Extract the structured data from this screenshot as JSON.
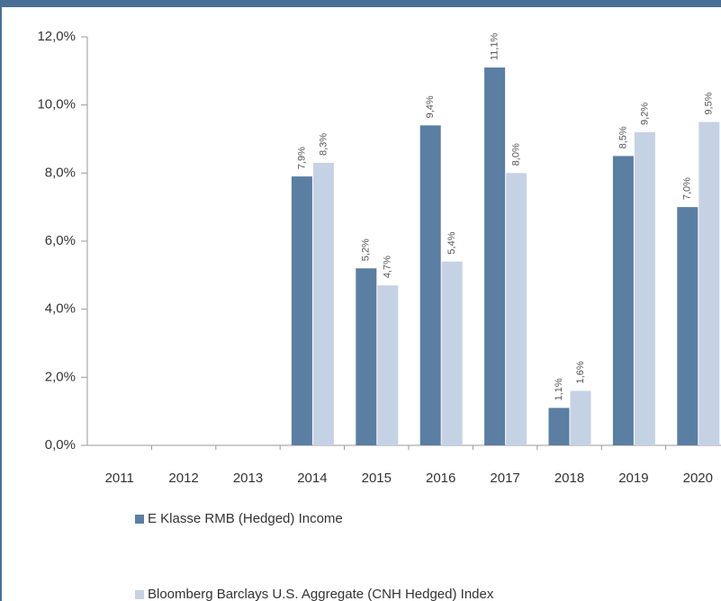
{
  "chart_data": {
    "type": "bar",
    "categories": [
      "2011",
      "2012",
      "2013",
      "2014",
      "2015",
      "2016",
      "2017",
      "2018",
      "2019",
      "2020"
    ],
    "series": [
      {
        "name": "E Klasse RMB (Hedged) Income",
        "color": "#5b7ea3",
        "values": [
          null,
          null,
          null,
          7.9,
          5.2,
          9.4,
          11.1,
          1.1,
          8.5,
          7.0
        ],
        "value_labels": [
          null,
          null,
          null,
          "7,9%",
          "5,2%",
          "9,4%",
          "11,1%",
          "1,1%",
          "8,5%",
          "7,0%"
        ]
      },
      {
        "name": "Bloomberg Barclays U.S. Aggregate (CNH Hedged) Index",
        "color": "#c5d2e4",
        "values": [
          null,
          null,
          null,
          8.3,
          4.7,
          5.4,
          8.0,
          1.6,
          9.2,
          9.5
        ],
        "value_labels": [
          null,
          null,
          null,
          "8,3%",
          "4,7%",
          "5,4%",
          "8,0%",
          "1,6%",
          "9,2%",
          "9,5%"
        ]
      }
    ],
    "ylim": [
      0,
      12
    ],
    "yticks": [
      {
        "value": 0,
        "label": "0,0%"
      },
      {
        "value": 2,
        "label": "2,0%"
      },
      {
        "value": 4,
        "label": "4,0%"
      },
      {
        "value": 6,
        "label": "6,0%"
      },
      {
        "value": 8,
        "label": "8,0%"
      },
      {
        "value": 10,
        "label": "10,0%"
      },
      {
        "value": 12,
        "label": "12,0%"
      }
    ]
  }
}
